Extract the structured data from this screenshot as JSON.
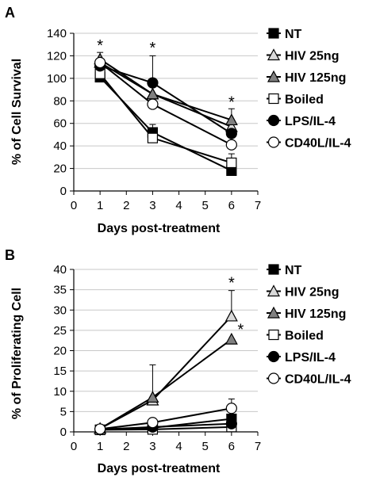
{
  "figure": {
    "panels": [
      {
        "label": "A",
        "xlabel": "Days post-treatment",
        "ylabel": "% of Cell Survival"
      },
      {
        "label": "B",
        "xlabel": "Days post-treatment",
        "ylabel": "% of Proliferating Cell"
      }
    ]
  },
  "chart_data": [
    {
      "type": "line",
      "panel": "A",
      "xlabel": "Days post-treatment",
      "ylabel": "% of Cell Survival",
      "xlim": [
        0,
        7
      ],
      "ylim": [
        0,
        140
      ],
      "xticks": [
        0,
        1,
        2,
        3,
        4,
        5,
        6,
        7
      ],
      "yticks": [
        0,
        20,
        40,
        60,
        80,
        100,
        120,
        140
      ],
      "grid": "horizontal",
      "legend_position": "right",
      "series": [
        {
          "name": "NT",
          "marker": "square-filled",
          "color": "#000000",
          "points": [
            [
              1,
              101
            ],
            [
              3,
              52
            ],
            [
              6,
              18
            ]
          ],
          "err": [
            0,
            7,
            0
          ]
        },
        {
          "name": "HIV 25ng",
          "marker": "triangle-light",
          "color": "#d9d9d9",
          "points": [
            [
              1,
              114
            ],
            [
              3,
              86
            ],
            [
              6,
              57
            ]
          ],
          "err": [
            0,
            0,
            0
          ]
        },
        {
          "name": "HIV 125ng",
          "marker": "triangle-gray",
          "color": "#808080",
          "points": [
            [
              1,
              117
            ],
            [
              3,
              86
            ],
            [
              6,
              63
            ]
          ],
          "err": [
            6,
            0,
            10
          ]
        },
        {
          "name": "Boiled",
          "marker": "square-open",
          "color": "#ffffff",
          "points": [
            [
              1,
              104
            ],
            [
              3,
              47
            ],
            [
              6,
              25
            ]
          ],
          "err": [
            0,
            0,
            8
          ]
        },
        {
          "name": "LPS/IL-4",
          "marker": "circle-filled",
          "color": "#000000",
          "points": [
            [
              1,
              111
            ],
            [
              3,
              96
            ],
            [
              6,
              51
            ]
          ],
          "err": [
            0,
            24,
            0
          ]
        },
        {
          "name": "CD40L/IL-4",
          "marker": "circle-open",
          "color": "#ffffff",
          "points": [
            [
              1,
              114
            ],
            [
              3,
              77
            ],
            [
              6,
              41
            ]
          ],
          "err": [
            0,
            0,
            0
          ]
        }
      ],
      "annotations": [
        {
          "text": "*",
          "x": 1,
          "y": 130
        },
        {
          "text": "*",
          "x": 3,
          "y": 128
        },
        {
          "text": "*",
          "x": 6,
          "y": 80
        }
      ]
    },
    {
      "type": "line",
      "panel": "B",
      "xlabel": "Days post-treatment",
      "ylabel": "% of Proliferating Cell",
      "xlim": [
        0,
        7
      ],
      "ylim": [
        0,
        40
      ],
      "xticks": [
        0,
        1,
        2,
        3,
        4,
        5,
        6,
        7
      ],
      "yticks": [
        0,
        5,
        10,
        15,
        20,
        25,
        30,
        35,
        40
      ],
      "grid": "horizontal",
      "legend_position": "right",
      "series": [
        {
          "name": "NT",
          "marker": "square-filled",
          "color": "#000000",
          "points": [
            [
              1,
              0.5
            ],
            [
              3,
              1
            ],
            [
              6,
              3.2
            ]
          ],
          "err": [
            0,
            0,
            0
          ]
        },
        {
          "name": "HIV 25ng",
          "marker": "triangle-light",
          "color": "#d9d9d9",
          "points": [
            [
              1,
              0.8
            ],
            [
              3,
              7.8
            ],
            [
              6,
              28.5
            ]
          ],
          "err": [
            0,
            8.7,
            6.3
          ]
        },
        {
          "name": "HIV 125ng",
          "marker": "triangle-gray",
          "color": "#808080",
          "points": [
            [
              1,
              0.8
            ],
            [
              3,
              8.5
            ],
            [
              6,
              22.8
            ]
          ],
          "err": [
            0,
            0,
            0
          ]
        },
        {
          "name": "Boiled",
          "marker": "square-open",
          "color": "#ffffff",
          "points": [
            [
              1,
              0.5
            ],
            [
              3,
              0.6
            ],
            [
              6,
              1.2
            ]
          ],
          "err": [
            0,
            0,
            0
          ]
        },
        {
          "name": "LPS/IL-4",
          "marker": "circle-filled",
          "color": "#000000",
          "points": [
            [
              1,
              0.6
            ],
            [
              3,
              1.2
            ],
            [
              6,
              2.0
            ]
          ],
          "err": [
            0,
            0,
            0
          ]
        },
        {
          "name": "CD40L/IL-4",
          "marker": "circle-open",
          "color": "#ffffff",
          "points": [
            [
              1,
              0.7
            ],
            [
              3,
              2.3
            ],
            [
              6,
              5.8
            ]
          ],
          "err": [
            0,
            0,
            2.3
          ]
        }
      ],
      "annotations": [
        {
          "text": "*",
          "x": 6,
          "y": 37
        },
        {
          "text": "*",
          "x": 6.35,
          "y": 25.5
        }
      ]
    }
  ]
}
